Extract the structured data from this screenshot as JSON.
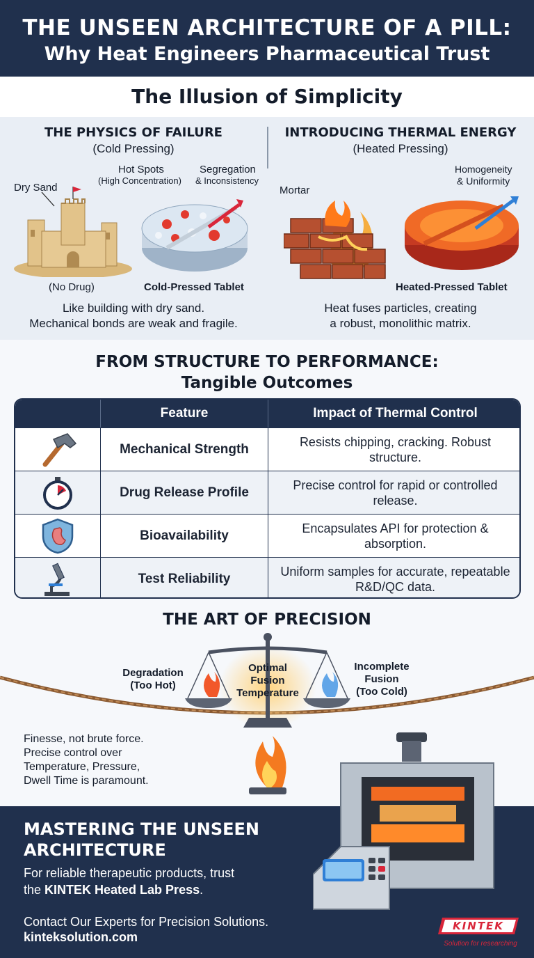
{
  "header": {
    "title": "THE UNSEEN ARCHITECTURE OF A PILL:",
    "subtitle": "Why Heat Engineers Pharmaceutical Trust"
  },
  "illusion": {
    "title": "The Illusion of Simplicity"
  },
  "cold": {
    "title": "THE PHYSICS OF FAILURE",
    "subtitle": "(Cold Pressing)",
    "dry_sand": "Dry Sand",
    "hot_spots": "Hot Spots",
    "hot_spots_note": "(High Concentration)",
    "segregation": "Segregation",
    "segregation_note": "& Inconsistency",
    "no_drug": "(No Drug)",
    "tablet": "Cold-Pressed Tablet",
    "caption_1": "Like building with dry sand.",
    "caption_2": "Mechanical bonds are weak and fragile."
  },
  "heated": {
    "title": "INTRODUCING THERMAL ENERGY",
    "subtitle": "(Heated Pressing)",
    "mortar": "Mortar",
    "homogeneity": "Homogeneity",
    "uniformity": "& Uniformity",
    "tablet": "Heated-Pressed Tablet",
    "caption_1": "Heat fuses particles, creating",
    "caption_2": "a robust, monolithic matrix."
  },
  "performance": {
    "title_1": "FROM STRUCTURE TO PERFORMANCE:",
    "title_2": "Tangible Outcomes"
  },
  "table": {
    "col_feature": "Feature",
    "col_impact": "Impact of Thermal Control",
    "rows": [
      {
        "icon": "hammer-icon",
        "feature": "Mechanical Strength",
        "impact": "Resists chipping, cracking. Robust structure."
      },
      {
        "icon": "stopwatch-icon",
        "feature": "Drug Release Profile",
        "impact": "Precise control for rapid or controlled release."
      },
      {
        "icon": "shield-stomach-icon",
        "feature": "Bioavailability",
        "impact": "Encapsulates API for protection & absorption."
      },
      {
        "icon": "microscope-icon",
        "feature": "Test Reliability",
        "impact": "Uniform samples for accurate, repeatable R&D/QC data."
      }
    ]
  },
  "art": {
    "title": "THE ART OF PRECISION",
    "hot_1": "Degradation",
    "hot_2": "(Too Hot)",
    "optimal_1": "Optimal",
    "optimal_2": "Fusion",
    "optimal_3": "Temperature",
    "cold_1": "Incomplete",
    "cold_2": "Fusion",
    "cold_3": "(Too Cold)",
    "finesse_1": "Finesse, not brute force.",
    "finesse_2": "Precise control over",
    "finesse_3": "Temperature, Pressure,",
    "finesse_4": "Dwell Time is paramount."
  },
  "footer": {
    "title": "MASTERING THE UNSEEN ARCHITECTURE",
    "body_1": "For reliable therapeutic products, trust",
    "body_2_pre": "the ",
    "body_2_bold": "KINTEK Heated Lab Press",
    "body_2_post": ".",
    "contact": "Contact Our Experts for Precision Solutions.",
    "url": "kinteksolution.com",
    "logo_text": "KINTEK",
    "logo_tagline": "Solution for researching"
  },
  "colors": {
    "navy": "#20304d",
    "panel": "#e9eef5",
    "accent_red": "#d9263a",
    "accent_blue": "#2f7fd6"
  }
}
